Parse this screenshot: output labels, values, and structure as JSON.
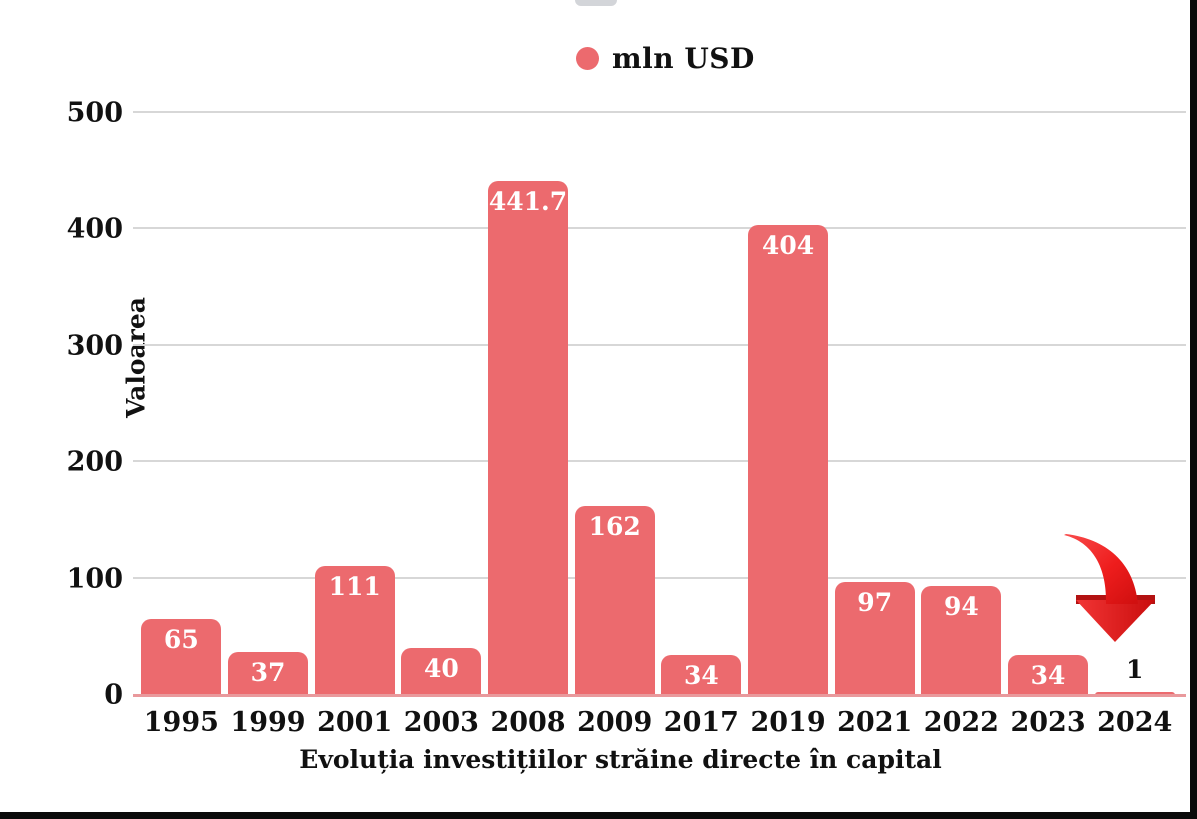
{
  "page": {
    "background": "#ffffff",
    "top_pill_color": "#d3d5d9",
    "border_color": "#0a0a0a"
  },
  "chart_data": {
    "type": "bar",
    "title": "Evoluția investițiilor străine directe în capital",
    "ylabel": "Valoarea",
    "legend": {
      "label": "mln USD",
      "color": "#ec6a6e"
    },
    "categories": [
      "1995",
      "1999",
      "2001",
      "2003",
      "2008",
      "2009",
      "2017",
      "2019",
      "2021",
      "2022",
      "2023",
      "2024"
    ],
    "values": [
      65,
      37,
      111,
      40,
      441.7,
      162,
      34,
      404,
      97,
      94,
      34,
      1
    ],
    "value_labels": [
      "65",
      "37",
      "111",
      "40",
      "441.7",
      "162",
      "34",
      "404",
      "97",
      "94",
      "34",
      "1"
    ],
    "ylim": [
      0,
      500
    ],
    "yticks": [
      0,
      100,
      200,
      300,
      400,
      500
    ],
    "grid": true,
    "legend_position": "top-center",
    "bar_color": "#ec6a6e",
    "inside_label_color": "#ffffff",
    "outside_label_color": "#111111",
    "gridline_color": "#d7d7d7",
    "baseline_color": "#e9999c",
    "annotation": {
      "type": "down-arrow",
      "target_category": "2024",
      "color": "#e31616"
    }
  }
}
